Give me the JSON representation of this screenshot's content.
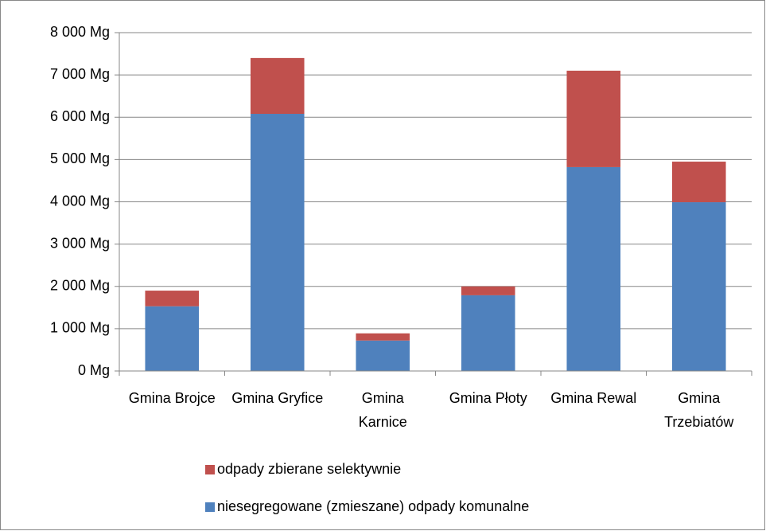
{
  "chart_data": {
    "type": "stacked_bar",
    "categories": [
      "Gmina Brojce",
      "Gmina Gryfice",
      "Gmina Karnice",
      "Gmina Płoty",
      "Gmina Rewal",
      "Gmina Trzebiatów"
    ],
    "series": [
      {
        "name": "niesegregowane (zmieszane) odpady komunalne",
        "color": "#4f81bd",
        "values": [
          1530,
          6080,
          720,
          1790,
          4820,
          3990
        ]
      },
      {
        "name": "odpady zbierane selektywnie",
        "color": "#c0504d",
        "values": [
          370,
          1320,
          170,
          210,
          2280,
          960
        ]
      }
    ],
    "ylim": [
      0,
      8000
    ],
    "yticks": [
      {
        "value": 0,
        "label": "0 Mg"
      },
      {
        "value": 1000,
        "label": "1 000 Mg"
      },
      {
        "value": 2000,
        "label": "2 000 Mg"
      },
      {
        "value": 3000,
        "label": "3 000 Mg"
      },
      {
        "value": 4000,
        "label": "4 000 Mg"
      },
      {
        "value": 5000,
        "label": "5 000 Mg"
      },
      {
        "value": 6000,
        "label": "6 000 Mg"
      },
      {
        "value": 7000,
        "label": "7 000 Mg"
      },
      {
        "value": 8000,
        "label": "8 000 Mg"
      }
    ],
    "grid": true,
    "legend": "bottom"
  }
}
